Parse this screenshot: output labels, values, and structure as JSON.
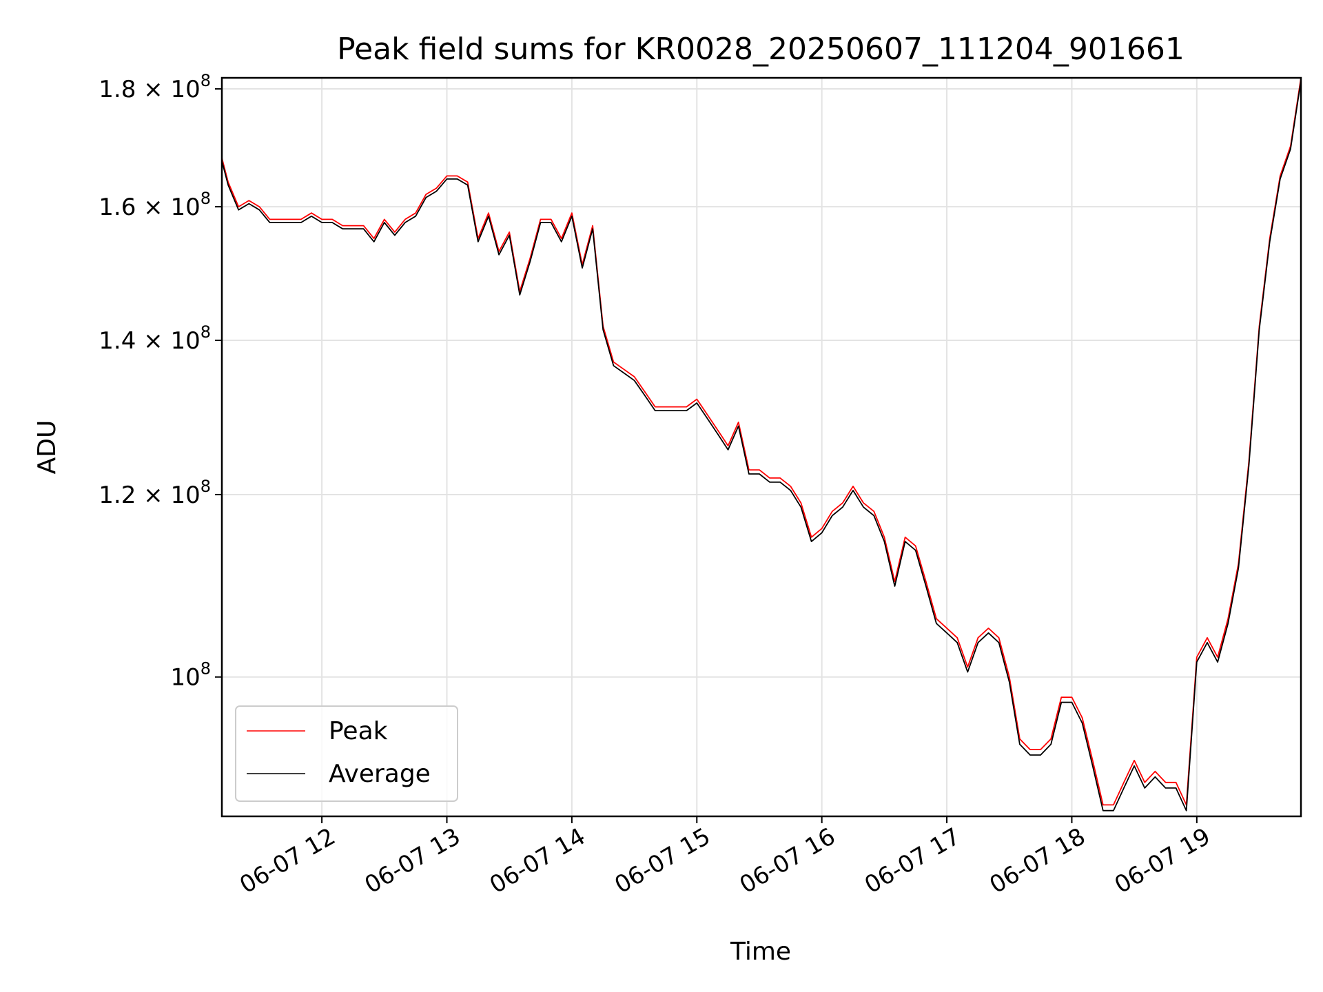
{
  "chart_data": {
    "type": "line",
    "title": "Peak field sums for KR0028_20250607_111204_901661",
    "xlabel": "Time",
    "ylabel": "ADU",
    "yscale": "log",
    "xlim": [
      "2025-06-07 11:12",
      "2025-06-07 19:50"
    ],
    "ylim": [
      87000000,
      182000000
    ],
    "grid": true,
    "legend_position": "lower-left",
    "x_ticks": [
      {
        "value": "2025-06-07 12:00",
        "label": "06-07 12"
      },
      {
        "value": "2025-06-07 13:00",
        "label": "06-07 13"
      },
      {
        "value": "2025-06-07 14:00",
        "label": "06-07 14"
      },
      {
        "value": "2025-06-07 15:00",
        "label": "06-07 15"
      },
      {
        "value": "2025-06-07 16:00",
        "label": "06-07 16"
      },
      {
        "value": "2025-06-07 17:00",
        "label": "06-07 17"
      },
      {
        "value": "2025-06-07 18:00",
        "label": "06-07 18"
      },
      {
        "value": "2025-06-07 19:00",
        "label": "06-07 19"
      }
    ],
    "y_ticks": [
      {
        "value": 100000000,
        "mantissa": "",
        "exponent": "8"
      },
      {
        "value": 120000000,
        "mantissa": "1.2",
        "exponent": "8"
      },
      {
        "value": 140000000,
        "mantissa": "1.4",
        "exponent": "8"
      },
      {
        "value": 160000000,
        "mantissa": "1.6",
        "exponent": "8"
      },
      {
        "value": 180000000,
        "mantissa": "1.8",
        "exponent": "8"
      }
    ],
    "series": [
      {
        "name": "Peak",
        "color": "#ff0000"
      },
      {
        "name": "Average",
        "color": "#000000"
      }
    ],
    "x": [
      "2025-06-07 11:12",
      "2025-06-07 11:15",
      "2025-06-07 11:20",
      "2025-06-07 11:25",
      "2025-06-07 11:30",
      "2025-06-07 11:35",
      "2025-06-07 11:40",
      "2025-06-07 11:45",
      "2025-06-07 11:50",
      "2025-06-07 11:55",
      "2025-06-07 12:00",
      "2025-06-07 12:05",
      "2025-06-07 12:10",
      "2025-06-07 12:15",
      "2025-06-07 12:20",
      "2025-06-07 12:25",
      "2025-06-07 12:30",
      "2025-06-07 12:35",
      "2025-06-07 12:40",
      "2025-06-07 12:45",
      "2025-06-07 12:50",
      "2025-06-07 12:55",
      "2025-06-07 13:00",
      "2025-06-07 13:05",
      "2025-06-07 13:10",
      "2025-06-07 13:15",
      "2025-06-07 13:20",
      "2025-06-07 13:25",
      "2025-06-07 13:30",
      "2025-06-07 13:35",
      "2025-06-07 13:40",
      "2025-06-07 13:45",
      "2025-06-07 13:50",
      "2025-06-07 13:55",
      "2025-06-07 14:00",
      "2025-06-07 14:05",
      "2025-06-07 14:10",
      "2025-06-07 14:15",
      "2025-06-07 14:20",
      "2025-06-07 14:25",
      "2025-06-07 14:30",
      "2025-06-07 14:35",
      "2025-06-07 14:40",
      "2025-06-07 14:45",
      "2025-06-07 14:50",
      "2025-06-07 14:55",
      "2025-06-07 15:00",
      "2025-06-07 15:05",
      "2025-06-07 15:10",
      "2025-06-07 15:15",
      "2025-06-07 15:20",
      "2025-06-07 15:25",
      "2025-06-07 15:30",
      "2025-06-07 15:35",
      "2025-06-07 15:40",
      "2025-06-07 15:45",
      "2025-06-07 15:50",
      "2025-06-07 15:55",
      "2025-06-07 16:00",
      "2025-06-07 16:05",
      "2025-06-07 16:10",
      "2025-06-07 16:15",
      "2025-06-07 16:20",
      "2025-06-07 16:25",
      "2025-06-07 16:30",
      "2025-06-07 16:35",
      "2025-06-07 16:40",
      "2025-06-07 16:45",
      "2025-06-07 16:50",
      "2025-06-07 16:55",
      "2025-06-07 17:00",
      "2025-06-07 17:05",
      "2025-06-07 17:10",
      "2025-06-07 17:15",
      "2025-06-07 17:20",
      "2025-06-07 17:25",
      "2025-06-07 17:30",
      "2025-06-07 17:35",
      "2025-06-07 17:40",
      "2025-06-07 17:45",
      "2025-06-07 17:50",
      "2025-06-07 17:55",
      "2025-06-07 18:00",
      "2025-06-07 18:05",
      "2025-06-07 18:10",
      "2025-06-07 18:15",
      "2025-06-07 18:20",
      "2025-06-07 18:25",
      "2025-06-07 18:30",
      "2025-06-07 18:35",
      "2025-06-07 18:40",
      "2025-06-07 18:45",
      "2025-06-07 18:50",
      "2025-06-07 18:55",
      "2025-06-07 19:00",
      "2025-06-07 19:05",
      "2025-06-07 19:10",
      "2025-06-07 19:15",
      "2025-06-07 19:20",
      "2025-06-07 19:25",
      "2025-06-07 19:30",
      "2025-06-07 19:35",
      "2025-06-07 19:40",
      "2025-06-07 19:45",
      "2025-06-07 19:50"
    ],
    "peak_values": [
      168000000.0,
      164000000.0,
      160000000.0,
      161000000.0,
      160000000.0,
      158000000.0,
      158000000.0,
      158000000.0,
      158000000.0,
      159000000.0,
      158000000.0,
      158000000.0,
      157000000.0,
      157000000.0,
      157000000.0,
      155000000.0,
      158000000.0,
      156000000.0,
      158000000.0,
      159000000.0,
      162000000.0,
      163000000.0,
      165000000.0,
      165000000.0,
      164000000.0,
      155000000.0,
      159000000.0,
      153000000.0,
      156000000.0,
      147000000.0,
      152000000.0,
      158000000.0,
      158000000.0,
      155000000.0,
      159000000.0,
      151000000.0,
      157000000.0,
      142000000.0,
      137000000.0,
      136000000.0,
      135000000.0,
      133000000.0,
      131000000.0,
      131000000.0,
      131000000.0,
      131000000.0,
      132000000.0,
      130000000.0,
      128000000.0,
      126000000.0,
      129000000.0,
      123000000.0,
      123000000.0,
      122000000.0,
      122000000.0,
      121000000.0,
      119000000.0,
      115000000.0,
      116000000.0,
      118000000.0,
      119000000.0,
      121000000.0,
      119000000.0,
      118000000.0,
      115000000.0,
      110000000.0,
      115000000.0,
      114000000.0,
      110000000.0,
      106000000.0,
      105000000.0,
      104000000.0,
      101000000.0,
      104000000.0,
      105000000.0,
      104000000.0,
      100000000.0,
      94000000.0,
      93000000.0,
      93000000.0,
      94000000.0,
      98000000.0,
      98000000.0,
      96000000.0,
      92000000.0,
      88000000.0,
      88000000.0,
      90000000.0,
      92000000.0,
      90000000.0,
      91000000.0,
      90000000.0,
      90000000.0,
      88000000.0,
      102000000.0,
      104000000.0,
      102000000.0,
      106000000.0,
      112000000.0,
      124000000.0,
      142000000.0,
      155000000.0,
      165000000.0,
      170000000.0,
      182000000.0
    ],
    "average_values": [
      167500000.0,
      163500000.0,
      159500000.0,
      160500000.0,
      159500000.0,
      157500000.0,
      157500000.0,
      157500000.0,
      157500000.0,
      158500000.0,
      157500000.0,
      157500000.0,
      156500000.0,
      156500000.0,
      156500000.0,
      154500000.0,
      157500000.0,
      155500000.0,
      157500000.0,
      158500000.0,
      161500000.0,
      162500000.0,
      164500000.0,
      164500000.0,
      163500000.0,
      154500000.0,
      158500000.0,
      152500000.0,
      155500000.0,
      146500000.0,
      151500000.0,
      157500000.0,
      157500000.0,
      154500000.0,
      158500000.0,
      150500000.0,
      156500000.0,
      141500000.0,
      136500000.0,
      135500000.0,
      134500000.0,
      132500000.0,
      130500000.0,
      130500000.0,
      130500000.0,
      130500000.0,
      131500000.0,
      129500000.0,
      127500000.0,
      125500000.0,
      128500000.0,
      122500000.0,
      122500000.0,
      121500000.0,
      121500000.0,
      120500000.0,
      118500000.0,
      114500000.0,
      115500000.0,
      117500000.0,
      118500000.0,
      120500000.0,
      118500000.0,
      117500000.0,
      114500000.0,
      109500000.0,
      114500000.0,
      113500000.0,
      109500000.0,
      105500000.0,
      104500000.0,
      103500000.0,
      100500000.0,
      103500000.0,
      104500000.0,
      103500000.0,
      99500000.0,
      93500000.0,
      92500000.0,
      92500000.0,
      93500000.0,
      97500000.0,
      97500000.0,
      95500000.0,
      91500000.0,
      87500000.0,
      87500000.0,
      89500000.0,
      91500000.0,
      89500000.0,
      90500000.0,
      89500000.0,
      89500000.0,
      87500000.0,
      101500000.0,
      103500000.0,
      101500000.0,
      105500000.0,
      111500000.0,
      123500000.0,
      141500000.0,
      154500000.0,
      164500000.0,
      169500000.0,
      181500000.0
    ]
  }
}
